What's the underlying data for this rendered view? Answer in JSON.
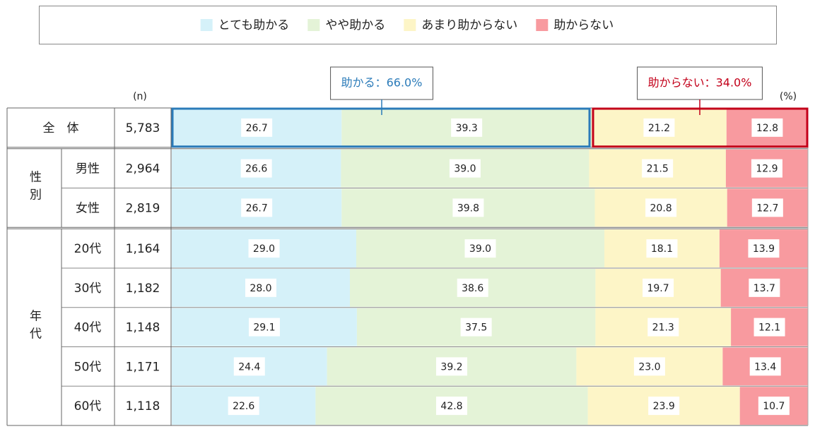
{
  "chart_data": {
    "type": "bar",
    "orientation": "horizontal",
    "stacked": true,
    "annotations": {
      "n_header": "(n)",
      "unit": "(%)",
      "positive": "助かる：66.0%",
      "negative": "助からない：34.0%"
    },
    "groups": [
      {
        "categories": [
          "全　体"
        ]
      },
      {
        "name": "性別",
        "categories": [
          "男性",
          "女性"
        ]
      },
      {
        "name": "年代",
        "categories": [
          "20代",
          "30代",
          "40代",
          "50代",
          "60代"
        ]
      }
    ],
    "n": [
      {
        "value": 5783,
        "label": "5,783"
      },
      {
        "value": 2964,
        "label": "2,964"
      },
      {
        "value": 2819,
        "label": "2,819"
      },
      {
        "value": 1164,
        "label": "1,164"
      },
      {
        "value": 1182,
        "label": "1,182"
      },
      {
        "value": 1148,
        "label": "1,148"
      },
      {
        "value": 1171,
        "label": "1,171"
      },
      {
        "value": 1118,
        "label": "1,118"
      }
    ],
    "xlim": [
      0,
      100
    ],
    "series": [
      {
        "name": "とても助かる",
        "color": "#d5f1f9",
        "values": [
          26.7,
          26.6,
          26.7,
          29.0,
          28.0,
          29.1,
          24.4,
          22.6
        ],
        "value_labels": [
          "26.7",
          "26.6",
          "26.7",
          "29.0",
          "28.0",
          "29.1",
          "24.4",
          "22.6"
        ]
      },
      {
        "name": "やや助かる",
        "color": "#e4f3d7",
        "values": [
          39.3,
          39.0,
          39.8,
          39.0,
          38.6,
          37.5,
          39.2,
          42.8
        ],
        "value_labels": [
          "39.3",
          "39.0",
          "39.8",
          "39.0",
          "38.6",
          "37.5",
          "39.2",
          "42.8"
        ]
      },
      {
        "name": "あまり助からない",
        "color": "#fdf5c7",
        "values": [
          21.2,
          21.5,
          20.8,
          18.1,
          19.7,
          21.3,
          23.0,
          23.9
        ],
        "value_labels": [
          "21.2",
          "21.5",
          "20.8",
          "18.1",
          "19.7",
          "21.3",
          "23.0",
          "23.9"
        ]
      },
      {
        "name": "助からない",
        "color": "#f89a9f",
        "values": [
          12.8,
          12.9,
          12.7,
          13.9,
          13.7,
          12.1,
          13.4,
          10.7
        ],
        "value_labels": [
          "12.8",
          "12.9",
          "12.7",
          "13.9",
          "13.7",
          "12.1",
          "13.4",
          "10.7"
        ]
      }
    ],
    "highlight_colors": [
      "#2b7bb9",
      "#c3001a"
    ]
  }
}
